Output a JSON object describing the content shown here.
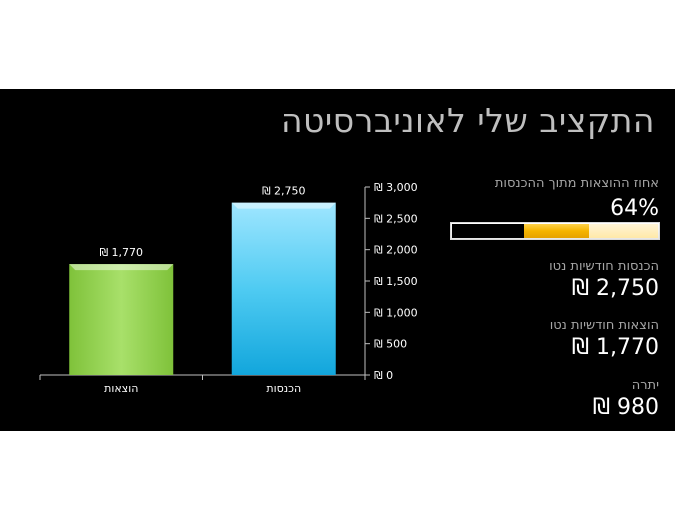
{
  "title": "התקציב שלי לאוניברסיטה",
  "stats": {
    "percent_label": "אחוז ההוצאות מתוך ההכנסות",
    "percent_value": "64%",
    "percent_fraction": 0.64,
    "income_label": "הכנסות חודשיות נטו",
    "income_value": "₪ 2,750",
    "expenses_label": "הוצאות חודשיות נטו",
    "expenses_value": "₪ 1,770",
    "balance_label": "יתרה",
    "balance_value": "₪ 980"
  },
  "chart_data": {
    "type": "bar",
    "categories": [
      "הוצאות",
      "הכנסות"
    ],
    "values": [
      1770,
      2750
    ],
    "data_labels": [
      "₪ 1,770",
      "₪ 2,750"
    ],
    "colors": [
      "#92d050",
      "#33c3f0"
    ],
    "ylim": [
      0,
      3000
    ],
    "y_ticks": [
      0,
      500,
      1000,
      1500,
      2000,
      2500,
      3000
    ],
    "y_tick_labels": [
      "₪ 0",
      "₪ 500",
      "₪ 1,000",
      "₪ 1,500",
      "₪ 2,000",
      "₪ 2,500",
      "₪ 3,000"
    ],
    "y_axis_position": "right",
    "grid": false,
    "legend": "none"
  }
}
